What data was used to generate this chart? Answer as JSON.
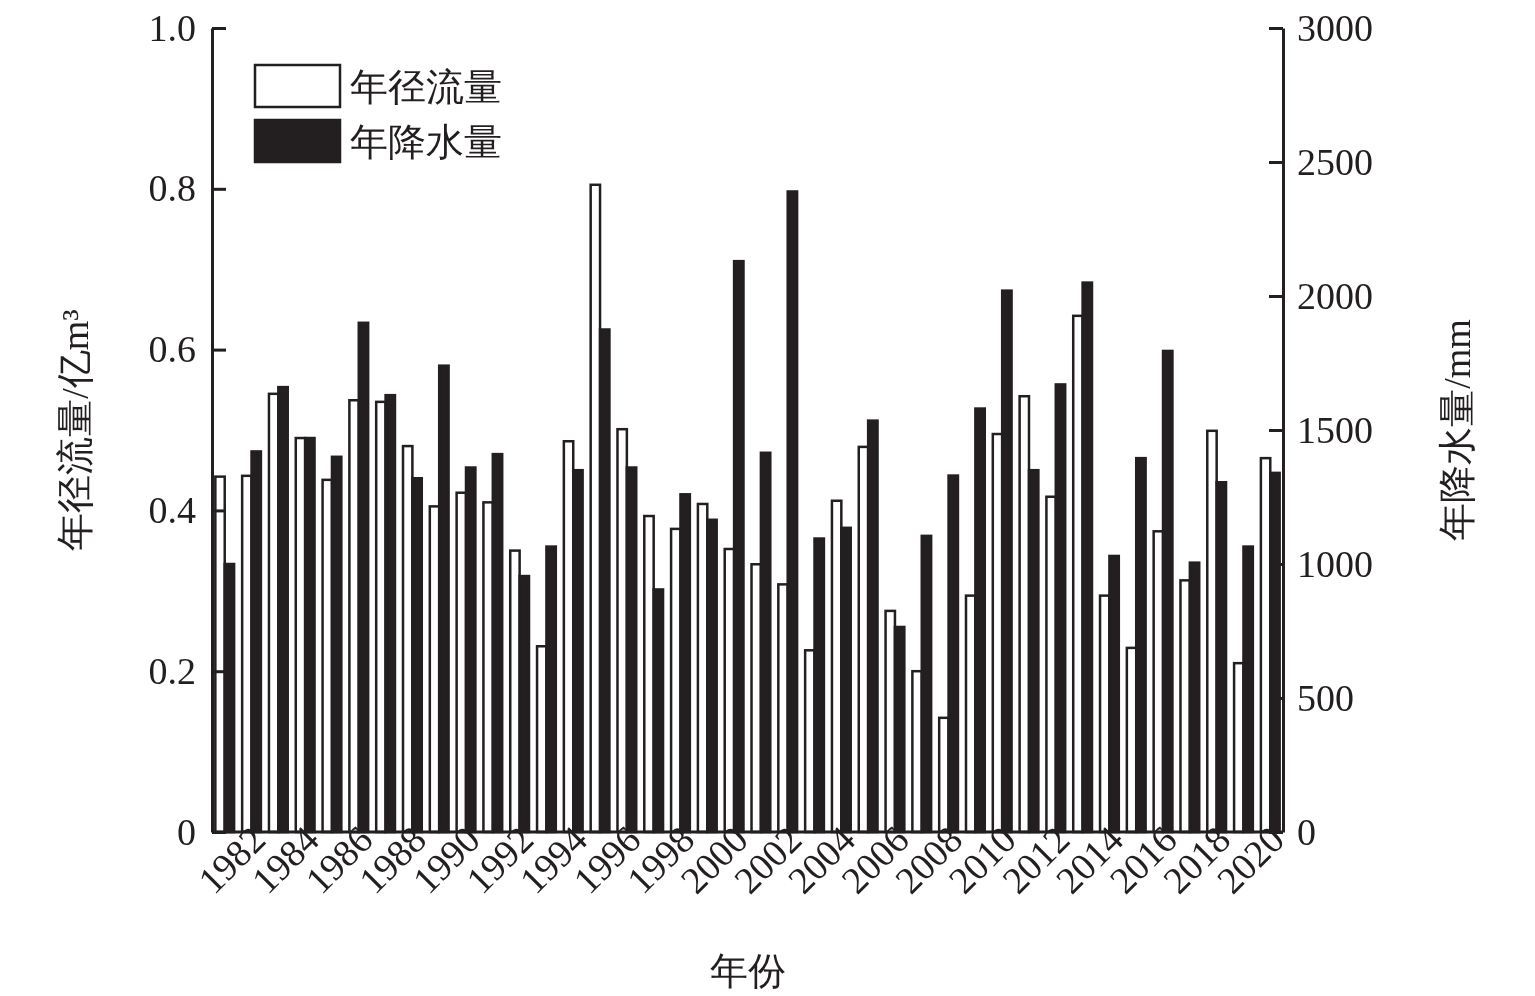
{
  "chart_data": {
    "type": "bar",
    "xlabel": "年份",
    "ylabel": "年径流量/亿m³",
    "y2label": "年降水量/mm",
    "categories": [
      null,
      "1982",
      null,
      "1984",
      null,
      "1986",
      null,
      "1988",
      null,
      "1990",
      null,
      "1992",
      null,
      "1994",
      null,
      "1996",
      null,
      "1998",
      null,
      "2000",
      null,
      "2002",
      null,
      "2004",
      null,
      "2006",
      null,
      "2008",
      null,
      "2010",
      null,
      "2012",
      null,
      "2014",
      null,
      "2016",
      null,
      "2018",
      null,
      "2020"
    ],
    "series": [
      {
        "name": "年径流量",
        "color": "#ffffff",
        "values": [
          0.442,
          0.443,
          0.545,
          0.49,
          0.438,
          0.537,
          0.535,
          0.48,
          0.405,
          0.422,
          0.41,
          0.35,
          0.231,
          0.486,
          0.805,
          0.501,
          0.393,
          0.377,
          0.408,
          0.352,
          0.333,
          0.308,
          0.226,
          0.412,
          0.479,
          0.275,
          0.2,
          0.142,
          0.294,
          0.495,
          0.542,
          0.417,
          0.642,
          0.294,
          0.229,
          0.374,
          0.313,
          0.499,
          0.21,
          0.465
        ]
      },
      {
        "name": "年降水量",
        "color": "#231f20",
        "axis": "y2",
        "values": [
          1000,
          1420,
          1660,
          1470,
          1400,
          1900,
          1630,
          1320,
          1740,
          1360,
          1410,
          955,
          1065,
          1350,
          1875,
          1360,
          905,
          1260,
          1165,
          2130,
          1415,
          2390,
          1095,
          1135,
          1535,
          765,
          1105,
          1330,
          1580,
          2020,
          1350,
          1670,
          2050,
          1030,
          1395,
          1795,
          1005,
          1305,
          1065,
          1340
        ]
      }
    ],
    "ylim": [
      0,
      1
    ],
    "yticks": [
      {
        "value": 0,
        "label": "0"
      },
      0.2,
      0.4,
      0.6,
      0.8,
      {
        "value": 1,
        "label": "1.0"
      }
    ],
    "y2lim": [
      0,
      3000
    ],
    "y2ticks": [
      0,
      500,
      1000,
      1500,
      2000,
      2500,
      3000
    ],
    "legend": "top left"
  }
}
